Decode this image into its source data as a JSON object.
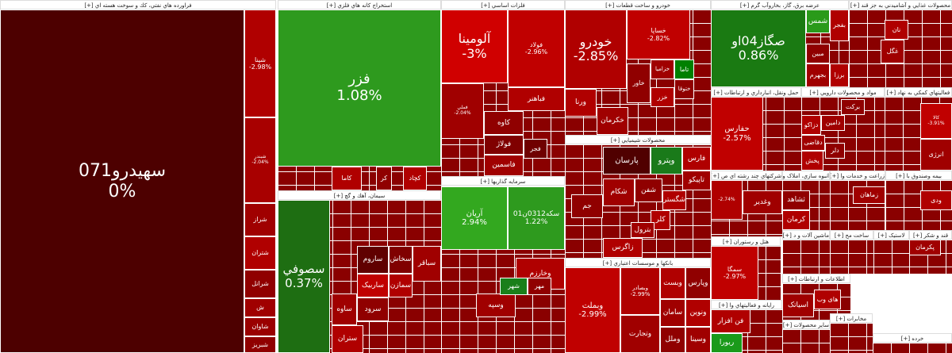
{
  "sectors": [
    {
      "title": "فراورده هاي نفتي، كك و سوخت هسته اي [+]",
      "tiles": [
        {
          "label": "سهيدرو071",
          "change": "0%"
        },
        {
          "label": "شپنا",
          "change": "-2.98%"
        },
        {
          "label": "شبندر",
          "change": "-2.04%"
        },
        {
          "label": "شراز"
        },
        {
          "label": "شتران"
        },
        {
          "label": "شرانل"
        },
        {
          "label": "ش"
        },
        {
          "label": "شاوان"
        },
        {
          "label": "شبریز"
        }
      ]
    },
    {
      "title": "استخراج كانه هاي فلزي [+]",
      "tiles": [
        {
          "label": "فزر",
          "change": "1.08%"
        },
        {
          "label": "کاما"
        },
        {
          "label": "کر"
        },
        {
          "label": "کچاد"
        }
      ]
    },
    {
      "title": "سيمان، آهك و گچ [+]",
      "tiles": [
        {
          "label": "سصوفي",
          "change": "0.37%"
        },
        {
          "label": "ساروم"
        },
        {
          "label": "سخاش"
        },
        {
          "label": "سباقر"
        },
        {
          "label": "ساربیک"
        },
        {
          "label": "سمازن"
        },
        {
          "label": "سرود"
        },
        {
          "label": "ساوه"
        },
        {
          "label": "ستران"
        }
      ]
    },
    {
      "title": "فلزات اساسي [+]",
      "tiles": [
        {
          "label": "آلومينا",
          "change": "-3%"
        },
        {
          "label": "فولاد",
          "change": "-2.96%"
        },
        {
          "label": "فباهنر"
        },
        {
          "label": "فملي",
          "change": "-2.04%"
        },
        {
          "label": "کاوه"
        },
        {
          "label": "فولاژ"
        },
        {
          "label": "فجر"
        },
        {
          "label": "فاسمين"
        }
      ]
    },
    {
      "title": "سرمايه گذاريها [+]",
      "tiles": [
        {
          "label": "آريان",
          "change": "2.94%"
        },
        {
          "label": "سکه0312ن01",
          "change": "1.22%"
        },
        {
          "label": "وخارزم"
        },
        {
          "label": "وسپه"
        },
        {
          "label": "شهر"
        },
        {
          "label": "مهر"
        }
      ]
    },
    {
      "title": "خودرو و ساخت قطعات [+]",
      "tiles": [
        {
          "label": "خودرو",
          "change": "-2.85%"
        },
        {
          "label": "خساپا",
          "change": "-2.82%"
        },
        {
          "label": "خزامیا"
        },
        {
          "label": "تاما"
        },
        {
          "label": "خاور"
        },
        {
          "label": "ورنا"
        },
        {
          "label": "خکرمان"
        },
        {
          "label": "ختوقا"
        },
        {
          "label": "خزر"
        }
      ]
    },
    {
      "title": "محصولات شيميايي [+]",
      "tiles": [
        {
          "label": "پارسان"
        },
        {
          "label": "وپترو"
        },
        {
          "label": "فارس"
        },
        {
          "label": "شکام"
        },
        {
          "label": "شفن"
        },
        {
          "label": "تاپيکو"
        },
        {
          "label": "شگستر"
        },
        {
          "label": "جم"
        },
        {
          "label": "کلر"
        },
        {
          "label": "بترول"
        },
        {
          "label": "زاگرس"
        }
      ]
    },
    {
      "title": "بانكها و موسسات اعتباري [+]",
      "tiles": [
        {
          "label": "وبملت",
          "change": "-2.99%"
        },
        {
          "label": "وبصادر",
          "change": "-2.99%"
        },
        {
          "label": "وتجارت"
        },
        {
          "label": "وبست"
        },
        {
          "label": "وپارس"
        },
        {
          "label": "سامان"
        },
        {
          "label": "ونوين"
        },
        {
          "label": "وملل"
        },
        {
          "label": "وسينا"
        }
      ]
    },
    {
      "title": "عرضه برق، گاز، بخاروآب گرم [+]",
      "tiles": [
        {
          "label": "صگاز04او",
          "change": "0.86%"
        },
        {
          "label": "شمس"
        },
        {
          "label": "بفجر"
        },
        {
          "label": "مبين"
        },
        {
          "label": "بجهرم"
        },
        {
          "label": "برزا"
        }
      ]
    },
    {
      "title": "حمل ونقل، انبارداري و ارتباطات [+]",
      "tiles": [
        {
          "label": "حفارس",
          "change": "-2.57%"
        }
      ]
    },
    {
      "title": "مواد و محصولات دارويي [+]",
      "tiles": [
        {
          "label": "برکت"
        },
        {
          "label": "دامين"
        },
        {
          "label": "دزاکو"
        },
        {
          "label": "دقاضی"
        },
        {
          "label": "دلر"
        },
        {
          "label": "پخش"
        }
      ]
    },
    {
      "title": "محصولات غذايي و آشاميدني به جز قند [+]",
      "tiles": [
        {
          "label": "نان"
        },
        {
          "label": "غگل"
        }
      ]
    },
    {
      "title": "فعاليتهاي كمكي به نهاد [+]",
      "tiles": [
        {
          "label": "کالا",
          "change": "-3.91%"
        },
        {
          "label": "انرژی"
        }
      ]
    },
    {
      "title": "شركتهاي چند رشته اي ص [+]",
      "tiles": [
        {
          "change": "-2.74%"
        },
        {
          "label": "وغدير"
        }
      ]
    },
    {
      "title": "انبوه سازي، املاک و [+]",
      "tiles": [
        {
          "label": "ثشاهد"
        },
        {
          "label": "کرمان"
        }
      ]
    },
    {
      "title": "زراعت و خدمات وا [+]",
      "tiles": [
        {
          "label": "زماهان"
        }
      ]
    },
    {
      "title": "بيمه وصندوق با [+]",
      "tiles": [
        {
          "label": "ودی"
        }
      ]
    },
    {
      "title": "هتل و رستوران [+]",
      "tiles": [
        {
          "label": "سمگا",
          "change": "-2.97%"
        }
      ]
    },
    {
      "title": "ماشين آلات و د [+]",
      "tiles": []
    },
    {
      "title": "ساخت مح [+]",
      "tiles": []
    },
    {
      "title": "لاستيک [+]",
      "tiles": []
    },
    {
      "title": "قند و شکر [+]",
      "tiles": [
        {
          "label": "پکرمان"
        }
      ]
    },
    {
      "title": "اطلاعات و ارتباطات [+]",
      "tiles": [
        {
          "label": "اسیاتک"
        },
        {
          "label": "های وب"
        }
      ]
    },
    {
      "title": "رايانه و فعاليتهاي وا [+]",
      "tiles": [
        {
          "label": "فن افزار"
        },
        {
          "label": "ریورا"
        }
      ]
    },
    {
      "title": "ساير محصولات [+]",
      "tiles": []
    },
    {
      "title": "مخابرات [+]",
      "tiles": []
    },
    {
      "title": "خرده [+]",
      "tiles": []
    }
  ]
}
